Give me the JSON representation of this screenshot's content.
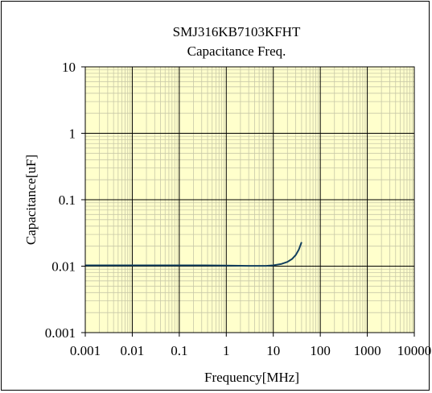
{
  "chart_data": {
    "type": "line",
    "title": "SMJ316KB7103KFHT",
    "subtitle": "Capacitance Freq.",
    "xlabel": "Frequency[MHz]",
    "ylabel": "Capacitance[uF]",
    "x_scale": "log",
    "y_scale": "log",
    "xlim": [
      0.001,
      10000
    ],
    "ylim": [
      0.001,
      10
    ],
    "grid": true,
    "legend": "none",
    "x_ticks": [
      {
        "value": 0.001,
        "label": "0.001"
      },
      {
        "value": 0.01,
        "label": "0.01"
      },
      {
        "value": 0.1,
        "label": "0.1"
      },
      {
        "value": 1,
        "label": "1"
      },
      {
        "value": 10,
        "label": "10"
      },
      {
        "value": 100,
        "label": "100"
      },
      {
        "value": 1000,
        "label": "1000"
      },
      {
        "value": 10000,
        "label": "10000"
      }
    ],
    "y_ticks": [
      {
        "value": 0.001,
        "label": "0.001"
      },
      {
        "value": 0.01,
        "label": "0.01"
      },
      {
        "value": 0.1,
        "label": "0.1"
      },
      {
        "value": 1,
        "label": "1"
      },
      {
        "value": 10,
        "label": "10"
      }
    ],
    "series": [
      {
        "x": [
          0.001,
          0.003,
          0.01,
          0.03,
          0.1,
          0.3,
          1,
          3,
          7,
          10,
          15,
          20,
          25,
          30,
          35,
          40
        ],
        "y": [
          0.0103,
          0.0103,
          0.0103,
          0.0103,
          0.0103,
          0.0103,
          0.0102,
          0.0101,
          0.0101,
          0.0103,
          0.0108,
          0.0116,
          0.0128,
          0.0147,
          0.0178,
          0.023
        ]
      }
    ]
  },
  "colors": {
    "plot_background": "#ffffcc",
    "grid_minor": "#c8c8a8",
    "grid_major": "#000000",
    "series_line": "#123f5e"
  }
}
